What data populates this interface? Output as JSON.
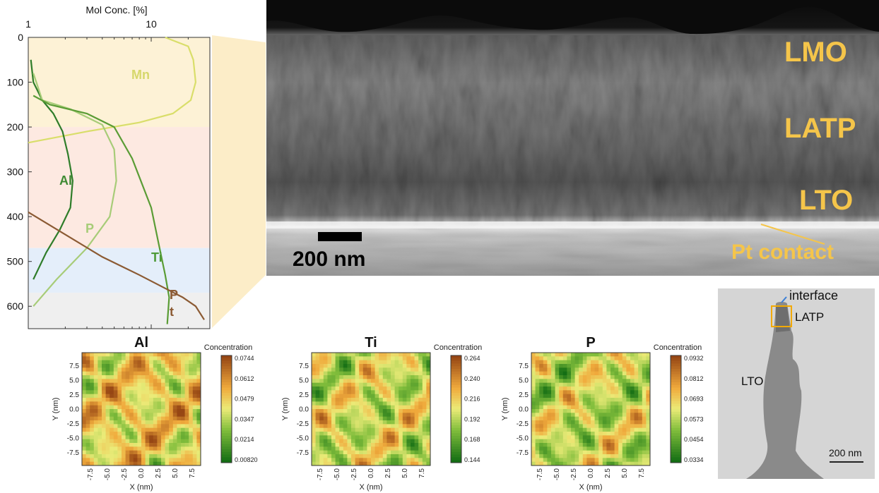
{
  "depth_profile": {
    "chart_data": {
      "type": "line",
      "x_scale": "log",
      "xlabel": "Mol Conc. [%]",
      "x_ticks": [
        "1",
        "10"
      ],
      "y_ticks": [
        "0",
        "100",
        "200",
        "300",
        "400",
        "500",
        "600"
      ],
      "xlim": [
        1,
        30
      ],
      "ylim": [
        650,
        0
      ],
      "regions": [
        {
          "name": "LMO",
          "from": 0,
          "to": 200,
          "color": "#fdf2d6"
        },
        {
          "name": "LATP",
          "from": 200,
          "to": 470,
          "color": "#fde9e1"
        },
        {
          "name": "LTO",
          "from": 470,
          "to": 570,
          "color": "#e4eefa"
        },
        {
          "name": "Pt",
          "from": 570,
          "to": 650,
          "color": "#efefef"
        }
      ],
      "series": [
        {
          "name": "Mn",
          "color": "#d9de6a",
          "points": [
            [
              13,
              0
            ],
            [
              20,
              20
            ],
            [
              22,
              50
            ],
            [
              23,
              100
            ],
            [
              21,
              140
            ],
            [
              15,
              170
            ],
            [
              8,
              190
            ],
            [
              3,
              210
            ],
            [
              1,
              235
            ]
          ]
        },
        {
          "name": "Al",
          "color": "#2f7d2a",
          "points": [
            [
              1.05,
              50
            ],
            [
              1.1,
              100
            ],
            [
              1.3,
              140
            ],
            [
              1.6,
              170
            ],
            [
              1.9,
              210
            ],
            [
              2.1,
              260
            ],
            [
              2.3,
              320
            ],
            [
              2.2,
              380
            ],
            [
              1.8,
              430
            ],
            [
              1.4,
              480
            ],
            [
              1.1,
              540
            ]
          ]
        },
        {
          "name": "P",
          "color": "#a7cc78",
          "points": [
            [
              1.1,
              80
            ],
            [
              1.3,
              140
            ],
            [
              2.2,
              160
            ],
            [
              4,
              195
            ],
            [
              5,
              250
            ],
            [
              5.2,
              320
            ],
            [
              4.6,
              400
            ],
            [
              3,
              470
            ],
            [
              1.7,
              540
            ],
            [
              1.1,
              600
            ]
          ]
        },
        {
          "name": "Ti",
          "color": "#5a9c35",
          "points": [
            [
              1.1,
              130
            ],
            [
              1.5,
              150
            ],
            [
              3,
              170
            ],
            [
              5,
              200
            ],
            [
              7,
              270
            ],
            [
              10,
              380
            ],
            [
              11.5,
              460
            ],
            [
              13,
              530
            ],
            [
              14,
              580
            ],
            [
              13.5,
              640
            ]
          ]
        },
        {
          "name": "Pt",
          "color": "#8b5a33",
          "points": [
            [
              1,
              390
            ],
            [
              2,
              440
            ],
            [
              4,
              490
            ],
            [
              8,
              530
            ],
            [
              13,
              560
            ],
            [
              18,
              580
            ],
            [
              23,
              600
            ],
            [
              27,
              630
            ]
          ]
        }
      ]
    },
    "series_labels": [
      {
        "name": "Mn",
        "text": "Mn",
        "color": "#d6d76b"
      },
      {
        "name": "Al",
        "text": "Al",
        "color": "#3f8a33"
      },
      {
        "name": "P",
        "text": "P",
        "color": "#a7cc78"
      },
      {
        "name": "Ti",
        "text": "Ti",
        "color": "#4e9a38"
      },
      {
        "name": "Pt",
        "text": "P\nt",
        "color": "#8b5a33"
      }
    ]
  },
  "sem": {
    "labels": [
      {
        "name": "LMO",
        "text": "LMO"
      },
      {
        "name": "LATP",
        "text": "LATP"
      },
      {
        "name": "LTO",
        "text": "LTO"
      },
      {
        "name": "Pt",
        "text": "Pt contact"
      }
    ],
    "scalebar": "200 nm",
    "label_color": "#f5c54a"
  },
  "tem": {
    "interface": "interface",
    "latp": "LATP",
    "lto": "LTO",
    "scalebar": "200 nm"
  },
  "maps": {
    "chart_data": [
      {
        "type": "heatmap",
        "title": "Al",
        "xlabel": "X (nm)",
        "ylabel": "Y (nm)",
        "colorbar_label": "Concentration",
        "colorbar_ticks": [
          "0.0744",
          "0.0612",
          "0.0479",
          "0.0347",
          "0.0214",
          "0.00820"
        ],
        "low_fraction": 0.3
      },
      {
        "type": "heatmap",
        "title": "Ti",
        "xlabel": "X (nm)",
        "ylabel": "Y (nm)",
        "colorbar_label": "Concentration",
        "colorbar_ticks": [
          "0.264",
          "0.240",
          "0.216",
          "0.192",
          "0.168",
          "0.144"
        ],
        "low_fraction": 0.55
      },
      {
        "type": "heatmap",
        "title": "P",
        "xlabel": "X (nm)",
        "ylabel": "Y (nm)",
        "colorbar_label": "Concentration",
        "colorbar_ticks": [
          "0.0932",
          "0.0812",
          "0.0693",
          "0.0573",
          "0.0454",
          "0.0334"
        ],
        "low_fraction": 0.62
      }
    ],
    "axis_ticks": [
      "7.5",
      "5.0",
      "2.5",
      "0.0",
      "-2.5",
      "-5.0",
      "-7.5"
    ],
    "x_ticks": [
      "-7.5",
      "-5.0",
      "-2.5",
      "0.0",
      "2.5",
      "5.0",
      "7.5"
    ]
  }
}
